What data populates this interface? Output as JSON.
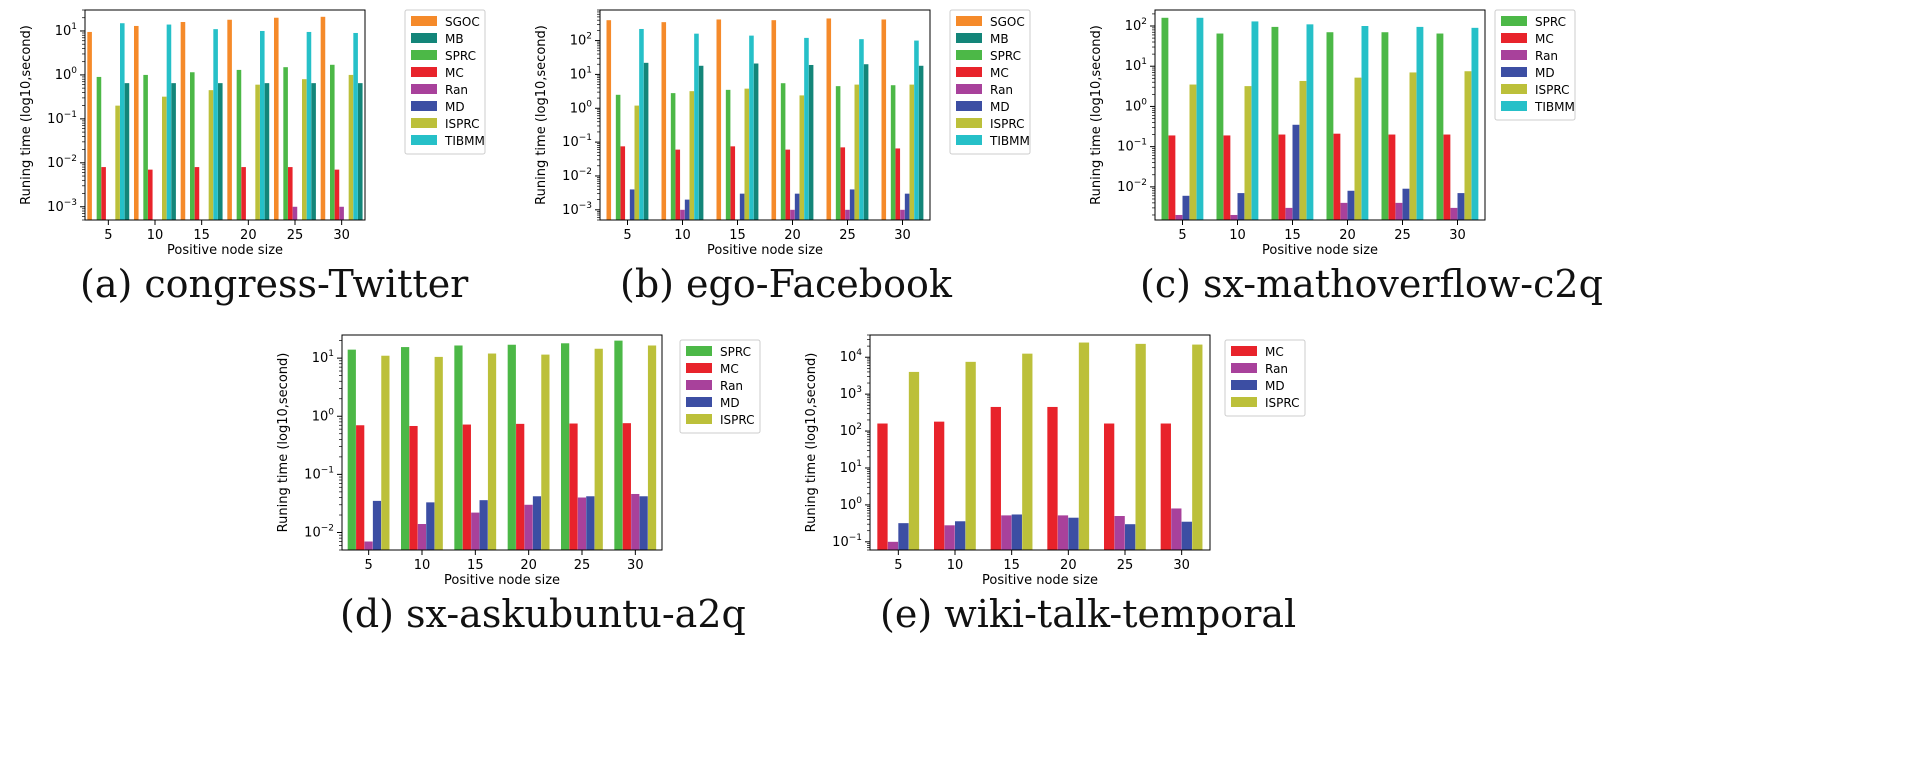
{
  "colors": {
    "SGOC": "#f58a2a",
    "MB": "#138579",
    "SPRC": "#4cb847",
    "MC": "#e8232b",
    "Ran": "#a8419b",
    "MD": "#3c4ea3",
    "ISPRC": "#bcc03a",
    "TIBMM": "#26c0c8"
  },
  "captions": {
    "a": "(a) congress-Twitter",
    "b": "(b) ego-Facebook",
    "c": "(c) sx-mathoverflow-c2q",
    "d": "(d) sx-askubuntu-a2q",
    "e": "(e) wiki-talk-temporal"
  },
  "chart_data": [
    {
      "id": "a",
      "type": "bar",
      "yscale": "log",
      "title": "",
      "xlabel": "Positive node size",
      "ylabel": "Runing time (log10,second)",
      "ylim": [
        0.0005,
        30
      ],
      "yticks": [
        0.001,
        0.01,
        0.1,
        1,
        10
      ],
      "ytick_labels": [
        [
          "10",
          "−3"
        ],
        [
          "10",
          "−2"
        ],
        [
          "10",
          "−1"
        ],
        [
          "10",
          "0"
        ],
        [
          "10",
          "1"
        ]
      ],
      "legend": "outside-right",
      "categories": [
        "5",
        "10",
        "15",
        "20",
        "25",
        "30"
      ],
      "series": [
        {
          "name": "SGOC",
          "values": [
            9.5,
            13,
            16,
            18,
            20,
            21
          ]
        },
        {
          "name": "MB",
          "values": [
            null,
            null,
            null,
            null,
            null,
            null
          ]
        },
        {
          "name": "SPRC",
          "values": [
            0.9,
            1.0,
            1.15,
            1.3,
            1.5,
            1.7
          ]
        },
        {
          "name": "MC",
          "values": [
            0.008,
            0.007,
            0.008,
            0.008,
            0.008,
            0.007
          ]
        },
        {
          "name": "Ran",
          "values": [
            null,
            null,
            null,
            null,
            0.001,
            0.001
          ]
        },
        {
          "name": "MD",
          "values": [
            null,
            null,
            null,
            null,
            null,
            null
          ]
        },
        {
          "name": "ISPRC",
          "values": [
            0.2,
            0.32,
            0.45,
            0.6,
            0.8,
            1.0
          ]
        },
        {
          "name": "TIBMM",
          "values": [
            15,
            14,
            11,
            10,
            9.5,
            9.0
          ]
        },
        {
          "name": "MB",
          "values": [
            0.65,
            0.65,
            0.65,
            0.65,
            0.65,
            0.65
          ],
          "legend": false
        }
      ]
    },
    {
      "id": "b",
      "type": "bar",
      "yscale": "log",
      "title": "",
      "xlabel": "Positive node size",
      "ylabel": "Runing time (log10,second)",
      "ylim": [
        0.0005,
        800
      ],
      "yticks": [
        0.001,
        0.01,
        0.1,
        1,
        10,
        100
      ],
      "ytick_labels": [
        [
          "10",
          "−3"
        ],
        [
          "10",
          "−2"
        ],
        [
          "10",
          "−1"
        ],
        [
          "10",
          "0"
        ],
        [
          "10",
          "1"
        ],
        [
          "10",
          "2"
        ]
      ],
      "legend": "outside-right",
      "categories": [
        "5",
        "10",
        "15",
        "20",
        "25",
        "30"
      ],
      "series": [
        {
          "name": "SGOC",
          "values": [
            400,
            350,
            420,
            400,
            450,
            420
          ]
        },
        {
          "name": "MB",
          "values": [
            null,
            null,
            null,
            null,
            null,
            null
          ]
        },
        {
          "name": "SPRC",
          "values": [
            2.5,
            2.8,
            3.5,
            5.5,
            4.5,
            4.8
          ]
        },
        {
          "name": "MC",
          "values": [
            0.075,
            0.06,
            0.075,
            0.06,
            0.07,
            0.065
          ]
        },
        {
          "name": "Ran",
          "values": [
            null,
            0.001,
            null,
            0.001,
            0.001,
            0.001
          ]
        },
        {
          "name": "MD",
          "values": [
            0.004,
            0.002,
            0.003,
            0.003,
            0.004,
            0.003
          ]
        },
        {
          "name": "ISPRC",
          "values": [
            1.2,
            3.2,
            3.8,
            2.4,
            5.0,
            5.0
          ]
        },
        {
          "name": "TIBMM",
          "values": [
            220,
            160,
            140,
            120,
            110,
            100
          ]
        },
        {
          "name": "MB",
          "values": [
            22,
            18,
            21,
            19,
            20,
            18
          ],
          "legend": false
        }
      ]
    },
    {
      "id": "c",
      "type": "bar",
      "yscale": "log",
      "title": "",
      "xlabel": "Positive node size",
      "ylabel": "Runing time (log10,second)",
      "ylim": [
        0.0015,
        250
      ],
      "yticks": [
        0.01,
        0.1,
        1,
        10,
        100
      ],
      "ytick_labels": [
        [
          "10",
          "−2"
        ],
        [
          "10",
          "−1"
        ],
        [
          "10",
          "0"
        ],
        [
          "10",
          "1"
        ],
        [
          "10",
          "2"
        ]
      ],
      "legend": "outside-right",
      "categories": [
        "5",
        "10",
        "15",
        "20",
        "25",
        "30"
      ],
      "series": [
        {
          "name": "SPRC",
          "values": [
            160,
            65,
            95,
            70,
            70,
            65
          ]
        },
        {
          "name": "MC",
          "values": [
            0.19,
            0.19,
            0.2,
            0.21,
            0.2,
            0.2
          ]
        },
        {
          "name": "Ran",
          "values": [
            0.002,
            0.002,
            0.003,
            0.004,
            0.004,
            0.003
          ]
        },
        {
          "name": "MD",
          "values": [
            0.006,
            0.007,
            0.35,
            0.008,
            0.009,
            0.007
          ]
        },
        {
          "name": "ISPRC",
          "values": [
            3.5,
            3.2,
            4.3,
            5.2,
            7.0,
            7.5
          ]
        },
        {
          "name": "TIBMM",
          "values": [
            160,
            130,
            110,
            100,
            95,
            90
          ]
        }
      ]
    },
    {
      "id": "d",
      "type": "bar",
      "yscale": "log",
      "title": "",
      "xlabel": "Positive node size",
      "ylabel": "Runing time (log10,second)",
      "ylim": [
        0.005,
        25
      ],
      "yticks": [
        0.01,
        0.1,
        1,
        10
      ],
      "ytick_labels": [
        [
          "10",
          "−2"
        ],
        [
          "10",
          "−1"
        ],
        [
          "10",
          "0"
        ],
        [
          "10",
          "1"
        ]
      ],
      "legend": "outside-right",
      "categories": [
        "5",
        "10",
        "15",
        "20",
        "25",
        "30"
      ],
      "series": [
        {
          "name": "SPRC",
          "values": [
            14,
            15.5,
            16.5,
            17,
            18,
            20
          ]
        },
        {
          "name": "MC",
          "values": [
            0.7,
            0.68,
            0.72,
            0.74,
            0.75,
            0.76
          ]
        },
        {
          "name": "Ran",
          "values": [
            0.007,
            0.014,
            0.022,
            0.03,
            0.04,
            0.046
          ]
        },
        {
          "name": "MD",
          "values": [
            0.035,
            0.033,
            0.036,
            0.042,
            0.042,
            0.042
          ]
        },
        {
          "name": "ISPRC",
          "values": [
            11,
            10.5,
            12,
            11.5,
            14.5,
            16.5
          ]
        }
      ]
    },
    {
      "id": "e",
      "type": "bar",
      "yscale": "log",
      "title": "",
      "xlabel": "Positive node size",
      "ylabel": "Runing time (log10,second)",
      "ylim": [
        0.06,
        40000
      ],
      "yticks": [
        0.1,
        1,
        10,
        100,
        1000,
        10000
      ],
      "ytick_labels": [
        [
          "10",
          "−1"
        ],
        [
          "10",
          "0"
        ],
        [
          "10",
          "1"
        ],
        [
          "10",
          "2"
        ],
        [
          "10",
          "3"
        ],
        [
          "10",
          "4"
        ]
      ],
      "legend": "outside-right",
      "categories": [
        "5",
        "10",
        "15",
        "20",
        "25",
        "30"
      ],
      "series": [
        {
          "name": "MC",
          "values": [
            160,
            180,
            450,
            450,
            160,
            160
          ]
        },
        {
          "name": "Ran",
          "values": [
            0.1,
            0.28,
            0.52,
            0.52,
            0.5,
            0.8
          ]
        },
        {
          "name": "MD",
          "values": [
            0.32,
            0.36,
            0.55,
            0.45,
            0.3,
            0.35
          ]
        },
        {
          "name": "ISPRC",
          "values": [
            4000,
            7500,
            12500,
            25000,
            23000,
            22000
          ]
        }
      ]
    }
  ]
}
